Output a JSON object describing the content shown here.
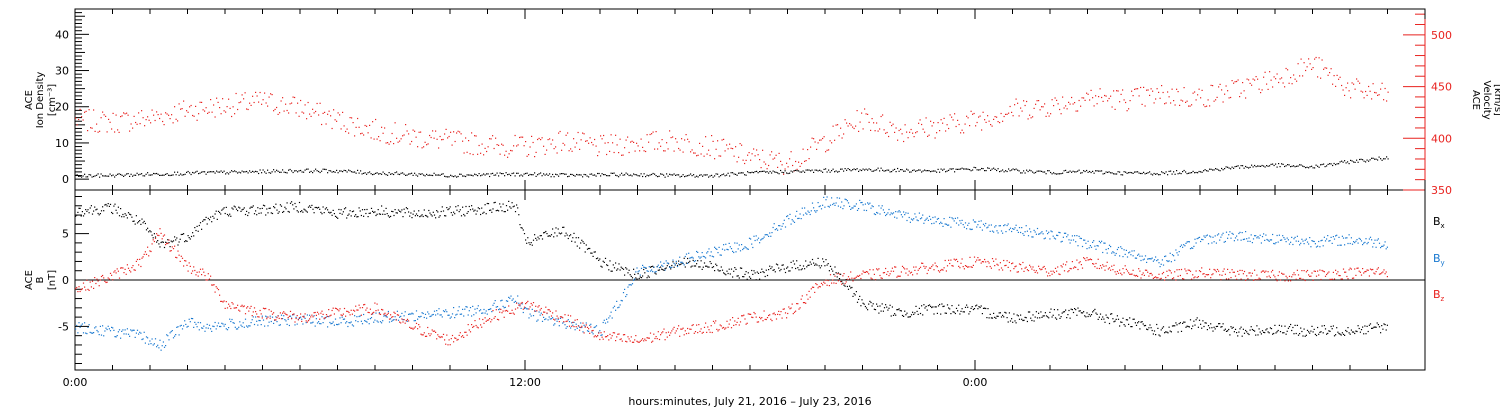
{
  "chart_data": [
    {
      "type": "scatter",
      "panel": "top",
      "ylabel_left": [
        "ACE",
        "Ion Density",
        "[cm⁻³]"
      ],
      "ylabel_right": [
        "ACE",
        "Velocity",
        "[km/s]"
      ],
      "left_axis": {
        "ylim": [
          -3,
          47
        ],
        "ticks": [
          0,
          10,
          20,
          30,
          40
        ],
        "color": "#000000"
      },
      "right_axis": {
        "ylim": [
          350,
          525
        ],
        "ticks": [
          350,
          400,
          450,
          500
        ],
        "color": "#e8221f"
      },
      "series": [
        {
          "axis": "right",
          "color": "#e8221f",
          "x_hours": [
            0,
            2,
            4,
            6,
            8,
            10,
            12,
            14,
            16,
            18,
            20,
            22,
            24,
            26,
            28,
            30,
            32,
            34,
            36,
            38,
            40,
            42,
            44,
            46,
            48,
            50,
            52,
            54,
            56,
            58,
            60,
            62,
            64,
            66,
            68,
            70
          ],
          "y": [
            418,
            416,
            420,
            428,
            432,
            436,
            430,
            418,
            408,
            402,
            398,
            394,
            392,
            398,
            392,
            396,
            398,
            392,
            382,
            376,
            398,
            420,
            408,
            412,
            418,
            428,
            432,
            440,
            438,
            442,
            440,
            448,
            458,
            472,
            448,
            442
          ]
        },
        {
          "axis": "left",
          "color": "#000000",
          "x_hours": [
            0,
            2,
            4,
            6,
            8,
            10,
            12,
            14,
            16,
            18,
            20,
            22,
            24,
            26,
            28,
            30,
            32,
            34,
            36,
            38,
            40,
            42,
            44,
            46,
            48,
            50,
            52,
            54,
            56,
            58,
            60,
            62,
            64,
            66,
            68,
            70
          ],
          "y": [
            1,
            1.2,
            1.5,
            1.8,
            2,
            2.2,
            2.5,
            2.4,
            1.8,
            1.5,
            1.2,
            1.4,
            1.5,
            1.2,
            1.3,
            1.4,
            1.1,
            1.2,
            1.8,
            2.2,
            2.5,
            2.8,
            2.6,
            2.4,
            3,
            2.5,
            2,
            2.2,
            1.8,
            1.8,
            2.4,
            3.5,
            4,
            3.5,
            5,
            6
          ]
        }
      ]
    },
    {
      "type": "scatter",
      "panel": "bottom",
      "ylabel_left": [
        "ACE",
        "B",
        "[nT]"
      ],
      "left_axis": {
        "ylim": [
          -9.7,
          9.7
        ],
        "ticks": [
          -5,
          0,
          5
        ],
        "color": "#000000"
      },
      "legend": [
        {
          "text": "B",
          "sub": "x",
          "color": "#000000"
        },
        {
          "text": "B",
          "sub": "y",
          "color": "#1878d0"
        },
        {
          "text": "B",
          "sub": "z",
          "color": "#e8221f"
        }
      ],
      "series": [
        {
          "name": "Bx",
          "color": "#000000",
          "x_hours": [
            0,
            2,
            3.5,
            4.5,
            6,
            7,
            8,
            10,
            12,
            14,
            16,
            18,
            20,
            22,
            23.5,
            24,
            26,
            28,
            30,
            32,
            34,
            36,
            38,
            40,
            42,
            44,
            46,
            48,
            50,
            52,
            54,
            56,
            58,
            60,
            62,
            64,
            66,
            68,
            70
          ],
          "y": [
            7.5,
            7.8,
            6.2,
            3.8,
            4.8,
            6.5,
            7.5,
            7.6,
            8.0,
            7.2,
            7.5,
            7.2,
            7.4,
            7.8,
            8.0,
            4.0,
            5.5,
            2.0,
            0.5,
            2.0,
            1.5,
            0.5,
            1.5,
            2.0,
            -2.5,
            -3.5,
            -3.0,
            -3.2,
            -4.0,
            -3.6,
            -3.5,
            -4.5,
            -5.5,
            -4.5,
            -5.6,
            -5.2,
            -5.5,
            -5.3,
            -5.0
          ]
        },
        {
          "name": "By",
          "color": "#1878d0",
          "x_hours": [
            0,
            2,
            3.5,
            4.5,
            6,
            7,
            8,
            10,
            12,
            14,
            16,
            18,
            20,
            22,
            23.5,
            24,
            26,
            28,
            30,
            32,
            34,
            36,
            38,
            40,
            42,
            44,
            46,
            48,
            50,
            52,
            54,
            56,
            58,
            60,
            62,
            64,
            66,
            68,
            70
          ],
          "y": [
            -5.0,
            -5.5,
            -6.0,
            -7.0,
            -4.5,
            -5.0,
            -4.8,
            -4.4,
            -4.2,
            -4.5,
            -4.0,
            -3.8,
            -3.5,
            -3.0,
            -2.0,
            -3.5,
            -4.5,
            -5.5,
            1.0,
            2.0,
            3.0,
            4.0,
            6.5,
            8.5,
            8.0,
            7.0,
            6.5,
            6.0,
            5.5,
            5.0,
            4.0,
            3.0,
            2.0,
            4.5,
            4.8,
            4.5,
            4.2,
            4.4,
            4.0
          ]
        },
        {
          "name": "Bz",
          "color": "#e8221f",
          "x_hours": [
            0,
            2,
            3.5,
            4.5,
            6,
            7,
            8,
            10,
            12,
            14,
            16,
            18,
            20,
            22,
            23.5,
            24,
            26,
            28,
            30,
            32,
            34,
            36,
            38,
            40,
            42,
            44,
            46,
            48,
            50,
            52,
            54,
            56,
            58,
            60,
            62,
            64,
            66,
            68,
            70
          ],
          "y": [
            -1.0,
            0.5,
            2.0,
            5.0,
            1.5,
            0.5,
            -2.5,
            -3.5,
            -4.0,
            -3.5,
            -3.0,
            -5.0,
            -6.5,
            -4.0,
            -3.0,
            -2.5,
            -4.0,
            -6.0,
            -6.5,
            -5.5,
            -5.0,
            -4.0,
            -3.5,
            0.0,
            0.5,
            1.0,
            1.5,
            2.0,
            1.5,
            1.0,
            2.0,
            1.0,
            0.5,
            0.8,
            0.6,
            0.5,
            0.6,
            0.8,
            1.0
          ]
        }
      ]
    }
  ],
  "x_axis": {
    "range_hours": [
      0,
      72
    ],
    "major_tick_labels": [
      {
        "hour": 0,
        "label": "0:00"
      },
      {
        "hour": 24,
        "label": "12:00"
      },
      {
        "hour": 48,
        "label": "0:00"
      }
    ],
    "xlabel": "hours:minutes, July 21, 2016 – July 23, 2016"
  }
}
